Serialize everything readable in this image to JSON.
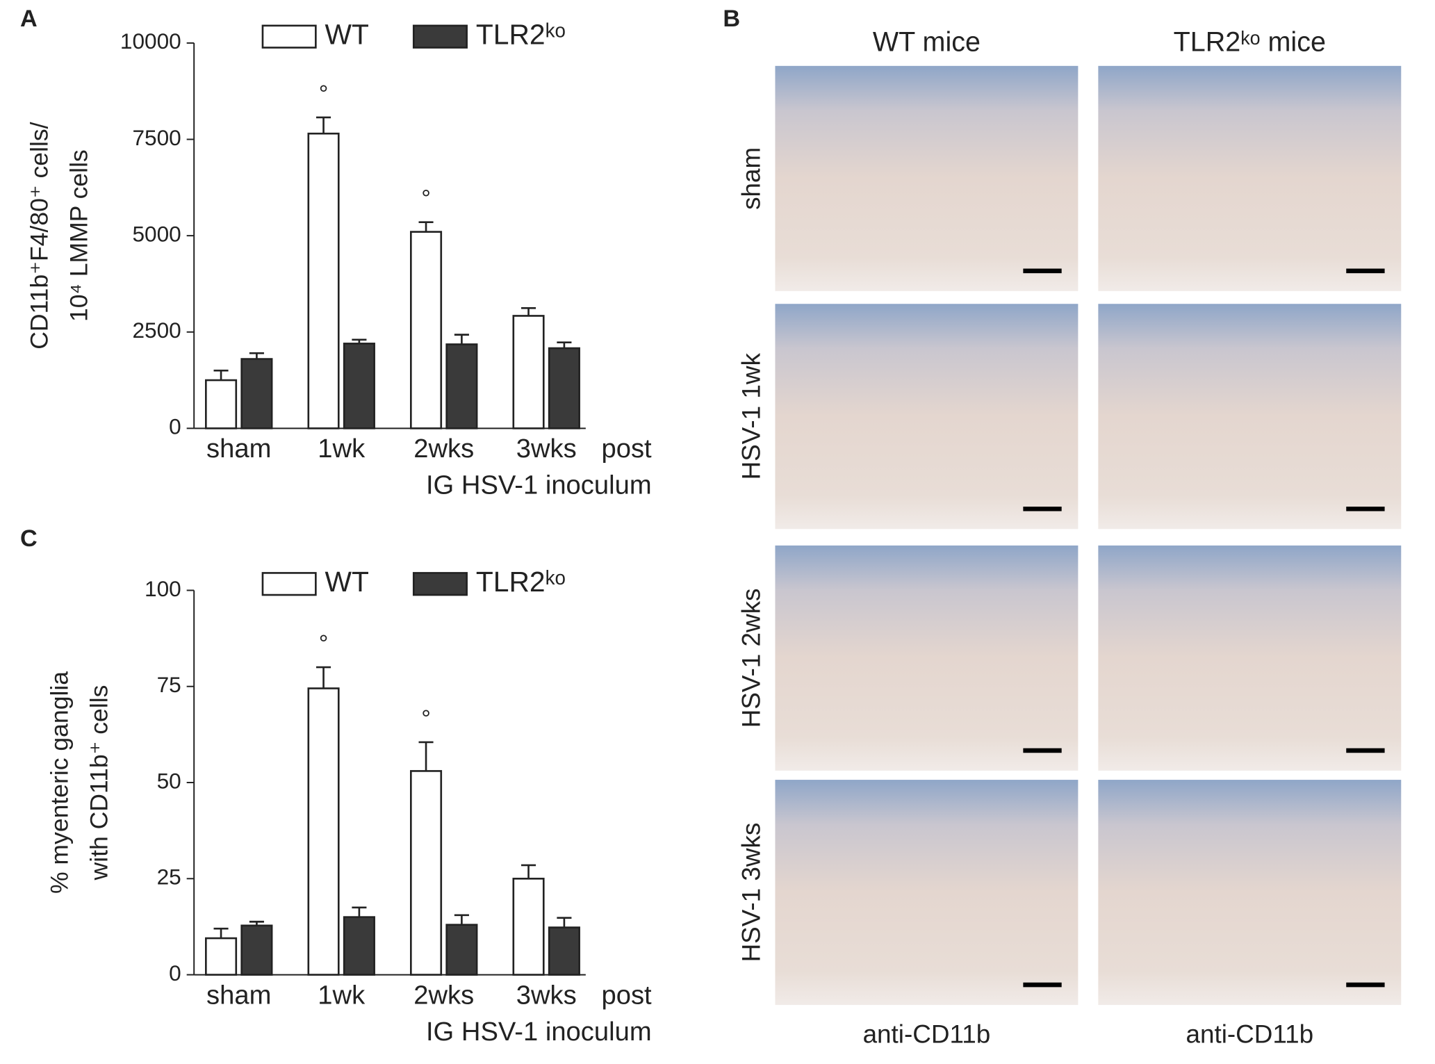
{
  "panel_letters": [
    "A",
    "B",
    "C"
  ],
  "chart_data": [
    {
      "type": "bar",
      "y_label": [
        "CD11b⁺F4/80⁺ cells/",
        "10⁴ LMMP cells"
      ],
      "x_label": [
        "post",
        "IG HSV-1 inoculum"
      ],
      "categories": [
        "sham",
        "1wk",
        "2wks",
        "3wks"
      ],
      "series": [
        {
          "name": "WT",
          "color": "#ffffff",
          "values": [
            1250,
            7650,
            5100,
            2920
          ],
          "errors": [
            250,
            420,
            250,
            200
          ],
          "markers": [
            null,
            "°",
            "°",
            null
          ]
        },
        {
          "name": "TLR2ᵏᵒ",
          "color": "#3a3a3a",
          "values": [
            1800,
            2200,
            2180,
            2080
          ],
          "errors": [
            150,
            100,
            250,
            150
          ]
        }
      ],
      "ylim": [
        0,
        10000
      ],
      "yticks": [
        0,
        2500,
        5000,
        7500,
        10000
      ]
    },
    {
      "type": "bar",
      "y_label": [
        "% myenteric ganglia",
        "with CD11b⁺ cells"
      ],
      "x_label": [
        "post",
        "IG HSV-1 inoculum"
      ],
      "categories": [
        "sham",
        "1wk",
        "2wks",
        "3wks"
      ],
      "series": [
        {
          "name": "WT",
          "color": "#ffffff",
          "values": [
            9.5,
            74.5,
            53,
            25
          ],
          "errors": [
            2.5,
            5.5,
            7.5,
            3.5
          ],
          "markers": [
            null,
            "°",
            "°",
            null
          ]
        },
        {
          "name": "TLR2ᵏᵒ",
          "color": "#3a3a3a",
          "values": [
            12.8,
            15,
            13,
            12.3
          ],
          "errors": [
            1,
            2.5,
            2.5,
            2.5
          ]
        }
      ],
      "ylim": [
        0,
        100
      ],
      "yticks": [
        0,
        25,
        50,
        75,
        100
      ]
    }
  ],
  "panel_b": {
    "columns": [
      "WT mice",
      "TLR2ᵏᵒ mice"
    ],
    "rows": [
      "sham",
      "HSV-1  1wk",
      "HSV-1  2wks",
      "HSV-1  3wks"
    ],
    "footer": [
      "anti-CD11b",
      "anti-CD11b"
    ]
  }
}
